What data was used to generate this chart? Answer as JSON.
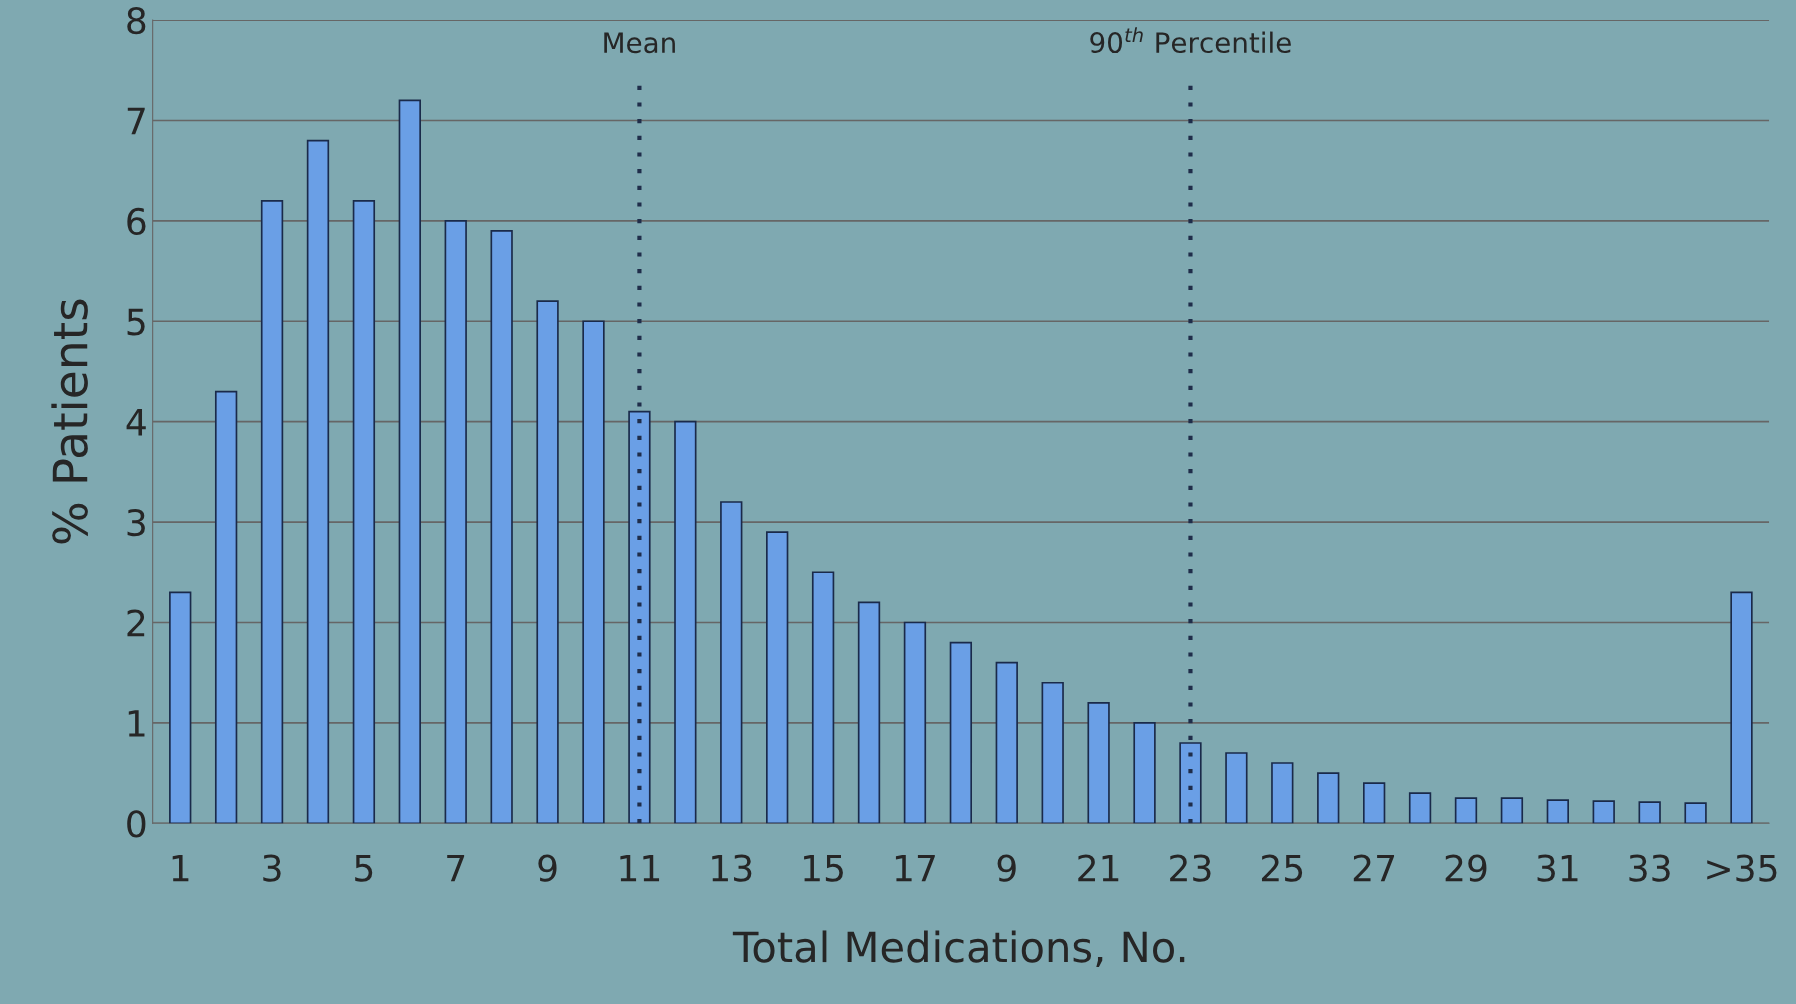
{
  "chart_data": {
    "type": "bar",
    "xlabel": "Total Medications, No.",
    "ylabel": "% Patients",
    "categories": [
      "1",
      null,
      "3",
      null,
      "5",
      null,
      "7",
      null,
      "9",
      null,
      "11",
      null,
      "13",
      null,
      "15",
      null,
      "17",
      null,
      "9",
      null,
      "21",
      null,
      "23",
      null,
      "25",
      null,
      "27",
      null,
      "29",
      null,
      "31",
      null,
      "33",
      null,
      ">35"
    ],
    "values": [
      2.3,
      4.3,
      6.2,
      6.8,
      6.2,
      7.2,
      6.0,
      5.9,
      5.2,
      5.0,
      4.1,
      4.0,
      3.2,
      2.9,
      2.5,
      2.2,
      2.0,
      1.8,
      1.6,
      1.4,
      1.2,
      1.0,
      0.8,
      0.7,
      0.6,
      0.5,
      0.4,
      0.3,
      0.25,
      0.25,
      0.23,
      0.22,
      0.21,
      0.2,
      2.3
    ],
    "color": "#6a9fe6",
    "ylim": [
      0,
      8
    ],
    "yticks": [
      0,
      1,
      2,
      3,
      4,
      5,
      6,
      7,
      8
    ],
    "grid": "y",
    "ref_lines": [
      {
        "axis": "x",
        "value": "11",
        "label": "Mean",
        "color": "#1f2d4a",
        "line_style": "dotted"
      },
      {
        "axis": "x",
        "value": "23",
        "label": "90$^{th}$ Percentile",
        "color": "#1f2d4a",
        "line_style": "dotted"
      }
    ]
  }
}
